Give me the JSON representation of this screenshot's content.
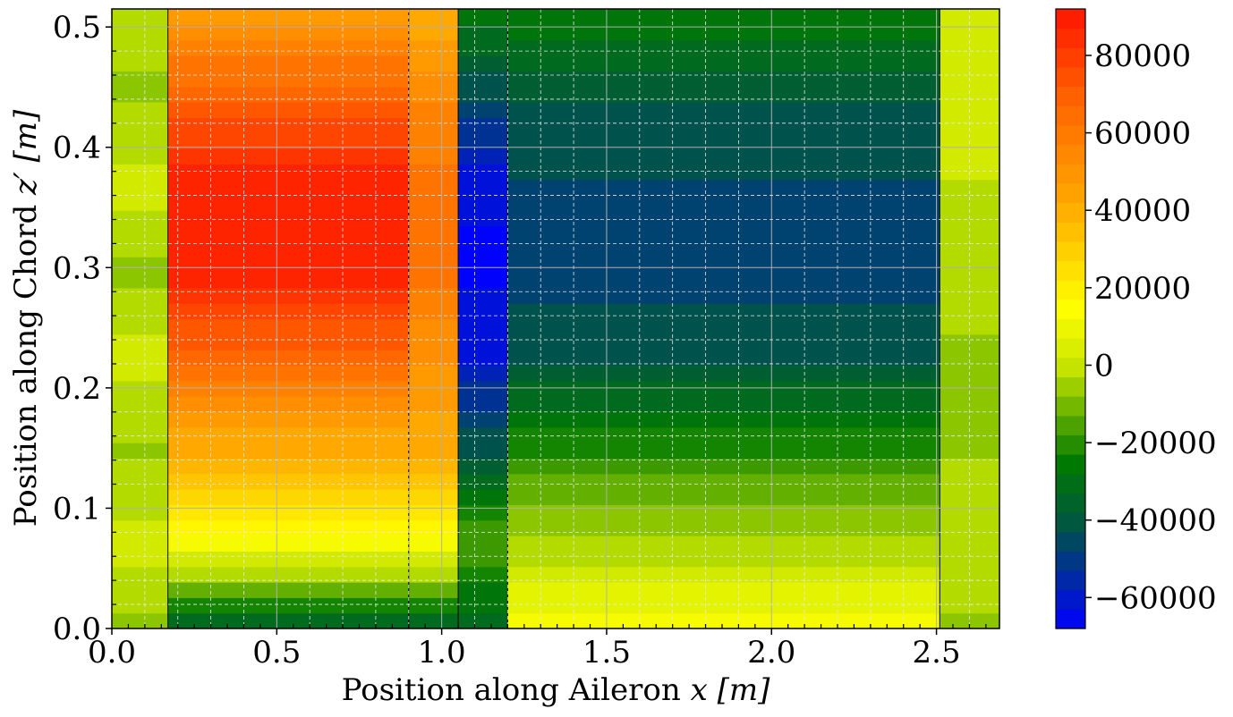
{
  "chart_data": {
    "type": "heatmap",
    "subtype": "filled-contour",
    "xlabel": "Position along Aileron x [m]",
    "ylabel": "Position along Chord z′ [m]",
    "xlabel_parts": {
      "prefix": "Position along Aileron ",
      "var": "x",
      "unit": "[m]"
    },
    "ylabel_parts": {
      "prefix": "Position along Chord ",
      "var": "z′",
      "unit": "[m]"
    },
    "xlim": [
      0.0,
      2.691
    ],
    "ylim": [
      0.0,
      0.515
    ],
    "x_ticks": [
      0.0,
      0.5,
      1.0,
      1.5,
      2.0,
      2.5
    ],
    "x_tick_labels": [
      "0.0",
      "0.5",
      "1.0",
      "1.5",
      "2.0",
      "2.5"
    ],
    "y_ticks": [
      0.0,
      0.1,
      0.2,
      0.3,
      0.4,
      0.5
    ],
    "y_tick_labels": [
      "0.0",
      "0.1",
      "0.2",
      "0.3",
      "0.4",
      "0.5"
    ],
    "colorbar": {
      "range": [
        -68000,
        92000
      ],
      "ticks": [
        -60000,
        -40000,
        -20000,
        0,
        20000,
        40000,
        60000,
        80000
      ],
      "tick_labels": [
        "−60000",
        "−40000",
        "−20000",
        "0",
        "20000",
        "40000",
        "60000",
        "80000"
      ],
      "colors": [
        {
          "v": -68000,
          "c": "#0000ff"
        },
        {
          "v": -40000,
          "c": "#005a3c"
        },
        {
          "v": -25000,
          "c": "#007a00"
        },
        {
          "v": 0,
          "c": "#c8e600"
        },
        {
          "v": 15000,
          "c": "#ffff00"
        },
        {
          "v": 40000,
          "c": "#ffae00"
        },
        {
          "v": 70000,
          "c": "#ff6000"
        },
        {
          "v": 92000,
          "c": "#ff1400"
        }
      ]
    },
    "grid": true,
    "regions": [
      {
        "x": [
          0.0,
          0.17
        ],
        "y": [
          0.0,
          0.515
        ],
        "z": [
          -6000,
          2000,
          -6000,
          2000,
          -6000,
          2000,
          -6000,
          -3000
        ]
      },
      {
        "x": [
          0.17,
          0.9
        ],
        "y": [
          0.0,
          0.515
        ],
        "z": [
          -35000,
          15000,
          40000,
          65000,
          88000,
          88000,
          70000,
          45000
        ]
      },
      {
        "x": [
          0.9,
          1.05
        ],
        "y": [
          0.0,
          0.515
        ],
        "z": [
          -35000,
          15000,
          40000,
          50000,
          62000,
          62000,
          55000,
          40000
        ]
      },
      {
        "x": [
          1.05,
          1.2
        ],
        "y": [
          0.0,
          0.515
        ],
        "z": [
          -35000,
          -15000,
          -40000,
          -60000,
          -66000,
          -64000,
          -45000,
          -25000
        ]
      },
      {
        "x": [
          1.2,
          2.51
        ],
        "y": [
          0.0,
          0.515
        ],
        "z": [
          15000,
          -5000,
          -20000,
          -40000,
          -48000,
          -45000,
          -40000,
          -25000
        ]
      },
      {
        "x": [
          2.51,
          2.691
        ],
        "y": [
          0.0,
          0.515
        ],
        "z": [
          -6000,
          0,
          -5000,
          -6000,
          -3000,
          0,
          2000,
          2000
        ]
      }
    ]
  }
}
